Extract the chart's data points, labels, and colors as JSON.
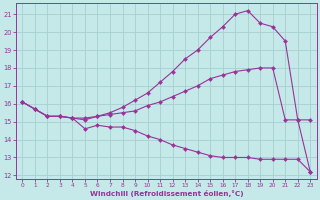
{
  "xlabel": "Windchill (Refroidissement éolien,°C)",
  "bg_color": "#c5e8e8",
  "grid_color": "#a8d0d0",
  "line_color": "#993399",
  "marker": "D",
  "marker_size": 2.2,
  "xlim": [
    -0.5,
    23.5
  ],
  "ylim": [
    11.8,
    21.6
  ],
  "xticks": [
    0,
    1,
    2,
    3,
    4,
    5,
    6,
    7,
    8,
    9,
    10,
    11,
    12,
    13,
    14,
    15,
    16,
    17,
    18,
    19,
    20,
    21,
    22,
    23
  ],
  "yticks": [
    12,
    13,
    14,
    15,
    16,
    17,
    18,
    19,
    20,
    21
  ],
  "curves": [
    {
      "x": [
        0,
        1,
        2,
        3,
        4,
        5,
        6,
        7,
        8,
        9,
        10,
        11,
        12,
        13,
        14,
        15,
        16,
        17,
        18,
        19,
        20,
        21,
        22,
        23
      ],
      "y": [
        16.1,
        15.7,
        15.3,
        15.3,
        15.2,
        14.6,
        14.8,
        14.7,
        14.7,
        14.5,
        14.2,
        14.0,
        13.7,
        13.5,
        13.3,
        13.1,
        13.0,
        13.0,
        13.0,
        12.9,
        12.9,
        12.9,
        12.9,
        12.2
      ]
    },
    {
      "x": [
        0,
        1,
        2,
        3,
        4,
        5,
        6,
        7,
        8,
        9,
        10,
        11,
        12,
        13,
        14,
        15,
        16,
        17,
        18,
        19,
        20,
        21,
        22,
        23
      ],
      "y": [
        16.1,
        15.7,
        15.3,
        15.3,
        15.2,
        15.2,
        15.3,
        15.4,
        15.5,
        15.6,
        15.9,
        16.1,
        16.4,
        16.7,
        17.0,
        17.4,
        17.6,
        17.8,
        17.9,
        18.0,
        18.0,
        15.1,
        15.1,
        15.1
      ]
    },
    {
      "x": [
        0,
        1,
        2,
        3,
        4,
        5,
        6,
        7,
        8,
        9,
        10,
        11,
        12,
        13,
        14,
        15,
        16,
        17,
        18,
        19,
        20,
        21,
        22,
        23
      ],
      "y": [
        16.1,
        15.7,
        15.3,
        15.3,
        15.2,
        15.1,
        15.3,
        15.5,
        15.8,
        16.2,
        16.6,
        17.2,
        17.8,
        18.5,
        19.0,
        19.7,
        20.3,
        21.0,
        21.2,
        20.5,
        20.3,
        19.5,
        15.1,
        12.2
      ]
    }
  ]
}
